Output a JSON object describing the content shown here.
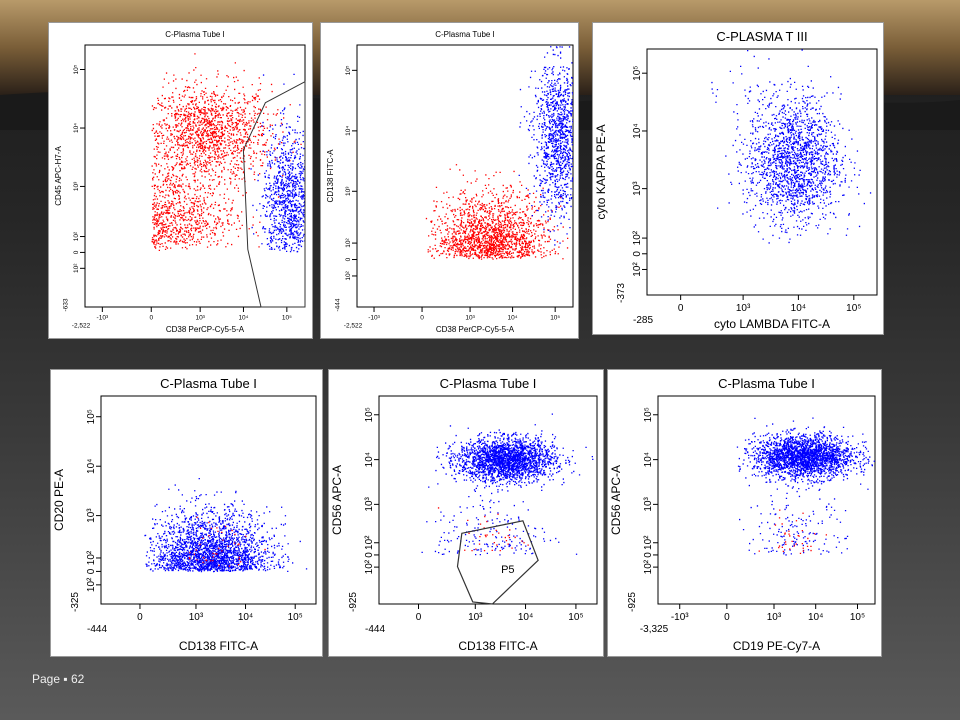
{
  "slide": {
    "page_label": "Page",
    "page_separator": "▪",
    "page_number": "62"
  },
  "colors": {
    "gated_population": "#ff0000",
    "plasma_population": "#0000ff",
    "gate_line": "#333333",
    "axis": "#000000"
  },
  "chart_data": [
    {
      "type": "scatter",
      "title": "C-Plasma Tube I",
      "xlabel": "CD38 PerCP-Cy5-5-A",
      "ylabel": "CD45 APC-H7-A",
      "x_scale": "biexponential",
      "y_scale": "biexponential",
      "xlim": [
        -2522,
        262144
      ],
      "ylim": [
        -633,
        262144
      ],
      "x_ticks": [
        "-10³",
        "0",
        "10³",
        "10⁴",
        "10⁵"
      ],
      "y_ticks": [
        "10²",
        "0",
        "10²",
        "10³",
        "10⁴",
        "10⁵"
      ],
      "x_min_label": "-2,522",
      "y_min_label": "-633",
      "grid": false,
      "gate": {
        "polygon": true,
        "label": ""
      },
      "series": [
        {
          "color": "#ff0000",
          "clusters": [
            {
              "cx": 1500,
              "cy": 8000,
              "sx": 0.6,
              "sy": 0.35,
              "n": 1400
            },
            {
              "cx": 300,
              "cy": 300,
              "sx": 0.55,
              "sy": 0.35,
              "n": 700
            }
          ]
        },
        {
          "color": "#0000ff",
          "clusters": [
            {
              "cx": 110000,
              "cy": 600,
              "sx": 0.25,
              "sy": 0.5,
              "n": 1000
            }
          ]
        }
      ]
    },
    {
      "type": "scatter",
      "title": "C-Plasma Tube I",
      "xlabel": "CD38 PerCP-Cy5-5-A",
      "ylabel": "CD138 FITC-A",
      "x_scale": "biexponential",
      "y_scale": "biexponential",
      "xlim": [
        -2522,
        262144
      ],
      "ylim": [
        -444,
        262144
      ],
      "x_ticks": [
        "-10³",
        "0",
        "10³",
        "10⁴",
        "10⁵"
      ],
      "y_ticks": [
        "10²",
        "0",
        "10²",
        "10³",
        "10⁴",
        "10⁵"
      ],
      "x_min_label": "-2,522",
      "y_min_label": "-444",
      "grid": false,
      "series": [
        {
          "color": "#ff0000",
          "clusters": [
            {
              "cx": 3000,
              "cy": 150,
              "sx": 0.55,
              "sy": 0.35,
              "n": 1600
            }
          ]
        },
        {
          "color": "#0000ff",
          "clusters": [
            {
              "cx": 120000,
              "cy": 8000,
              "sx": 0.25,
              "sy": 0.55,
              "n": 1200
            }
          ]
        }
      ]
    },
    {
      "type": "scatter",
      "title": "C-PLASMA T III",
      "xlabel": "cyto LAMBDA FITC-A",
      "ylabel": "cyto KAPPA PE-A",
      "x_scale": "biexponential",
      "y_scale": "biexponential",
      "xlim": [
        -285,
        262144
      ],
      "ylim": [
        -373,
        262144
      ],
      "x_ticks": [
        "0",
        "10³",
        "10⁴",
        "10⁵"
      ],
      "y_ticks": [
        "10²",
        "0",
        "10²",
        "10³",
        "10⁴",
        "10⁵"
      ],
      "x_min_label": "-285",
      "y_min_label": "-373",
      "grid": false,
      "series": [
        {
          "color": "#0000ff",
          "clusters": [
            {
              "cx": 8000,
              "cy": 3000,
              "sx": 0.35,
              "sy": 0.45,
              "n": 1700
            },
            {
              "cx": 2000,
              "cy": 60000,
              "sx": 0.5,
              "sy": 0.2,
              "n": 40
            }
          ]
        }
      ]
    },
    {
      "type": "scatter",
      "title": "C-Plasma Tube I",
      "xlabel": "CD138 FITC-A",
      "ylabel": "CD20 PE-A",
      "x_scale": "biexponential",
      "y_scale": "biexponential",
      "xlim": [
        -444,
        262144
      ],
      "ylim": [
        -325,
        262144
      ],
      "x_ticks": [
        "0",
        "10³",
        "10⁴",
        "10⁵"
      ],
      "y_ticks": [
        "10²",
        "0",
        "10²",
        "10³",
        "10⁴",
        "10⁵"
      ],
      "x_min_label": "-444",
      "y_min_label": "-325",
      "grid": false,
      "series": [
        {
          "color": "#0000ff",
          "clusters": [
            {
              "cx": 2000,
              "cy": 150,
              "sx": 0.5,
              "sy": 0.4,
              "n": 2200
            }
          ]
        },
        {
          "color": "#ff0000",
          "clusters": [
            {
              "cx": 2500,
              "cy": 200,
              "sx": 0.3,
              "sy": 0.3,
              "n": 45
            }
          ]
        }
      ]
    },
    {
      "type": "scatter",
      "title": "C-Plasma Tube I",
      "xlabel": "CD138 FITC-A",
      "ylabel": "CD56 APC-A",
      "x_scale": "biexponential",
      "y_scale": "biexponential",
      "xlim": [
        -444,
        262144
      ],
      "ylim": [
        -925,
        262144
      ],
      "x_ticks": [
        "0",
        "10³",
        "10⁴",
        "10⁵"
      ],
      "y_ticks": [
        "10²",
        "0",
        "10²",
        "10³",
        "10⁴",
        "10⁵"
      ],
      "x_min_label": "-444",
      "y_min_label": "-925",
      "grid": false,
      "gate": {
        "polygon": true,
        "label": "P5"
      },
      "series": [
        {
          "color": "#0000ff",
          "clusters": [
            {
              "cx": 4000,
              "cy": 10000,
              "sx": 0.4,
              "sy": 0.2,
              "n": 2200
            },
            {
              "cx": 2000,
              "cy": 200,
              "sx": 0.5,
              "sy": 0.5,
              "n": 180
            }
          ]
        },
        {
          "color": "#ff0000",
          "clusters": [
            {
              "cx": 2500,
              "cy": 150,
              "sx": 0.3,
              "sy": 0.3,
              "n": 35
            }
          ]
        }
      ]
    },
    {
      "type": "scatter",
      "title": "C-Plasma Tube I",
      "xlabel": "CD19 PE-Cy7-A",
      "ylabel": "CD56 APC-A",
      "x_scale": "biexponential",
      "y_scale": "biexponential",
      "xlim": [
        -3325,
        262144
      ],
      "ylim": [
        -925,
        262144
      ],
      "x_ticks": [
        "-10³",
        "0",
        "10³",
        "10⁴",
        "10⁵"
      ],
      "y_ticks": [
        "10²",
        "0",
        "10²",
        "10³",
        "10⁴",
        "10⁵"
      ],
      "x_min_label": "-3,325",
      "y_min_label": "-925",
      "grid": false,
      "series": [
        {
          "color": "#0000ff",
          "clusters": [
            {
              "cx": 5000,
              "cy": 12000,
              "sx": 0.5,
              "sy": 0.2,
              "n": 2300
            },
            {
              "cx": 3000,
              "cy": 200,
              "sx": 0.5,
              "sy": 0.4,
              "n": 150
            }
          ]
        },
        {
          "color": "#ff0000",
          "clusters": [
            {
              "cx": 3000,
              "cy": 150,
              "sx": 0.3,
              "sy": 0.3,
              "n": 35
            }
          ]
        }
      ]
    }
  ]
}
